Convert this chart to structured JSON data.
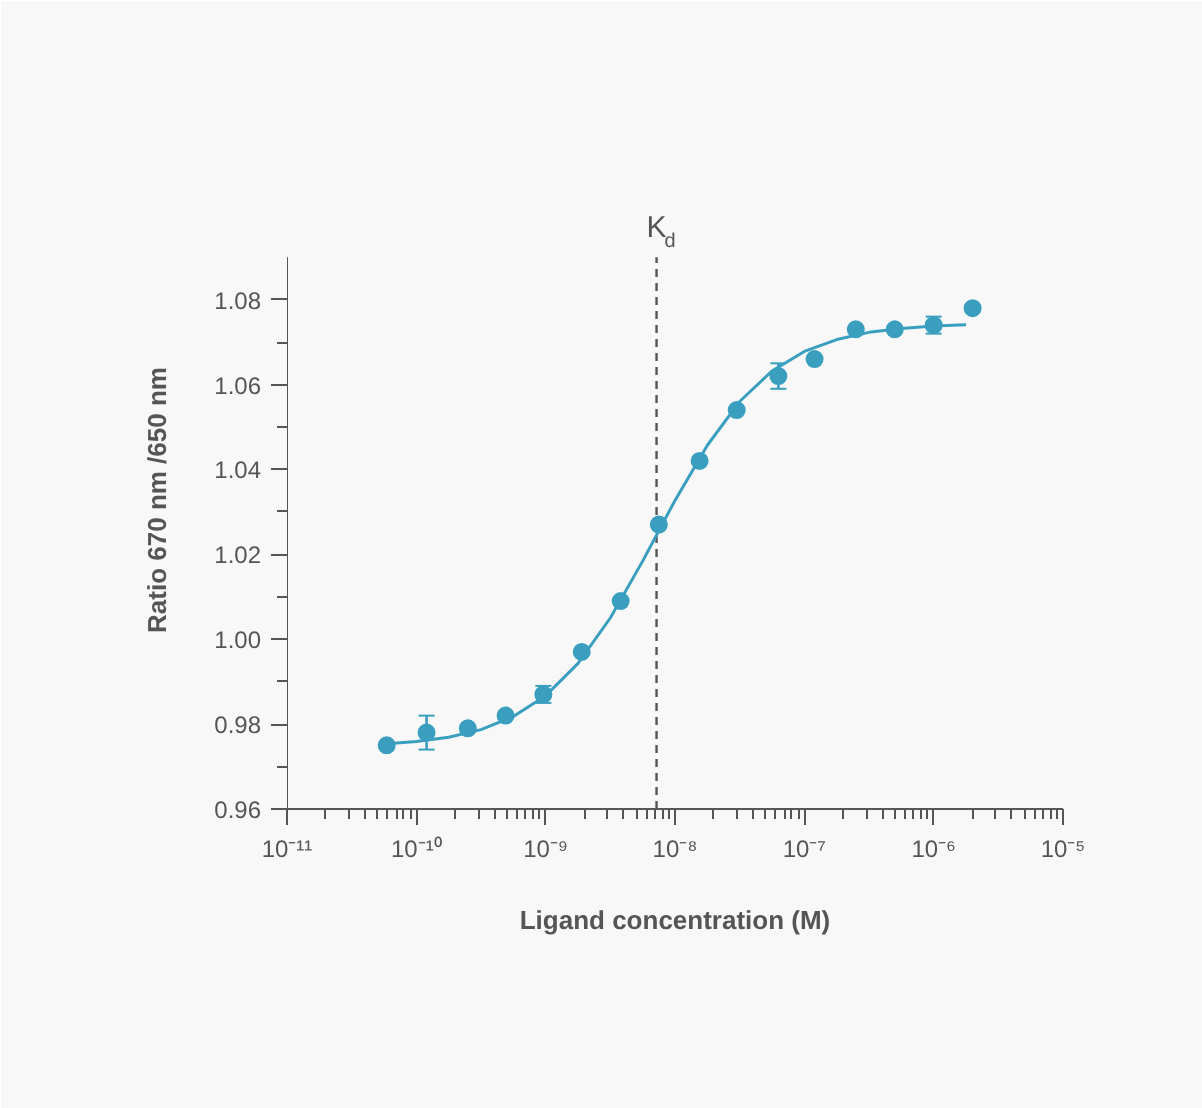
{
  "chart_data": {
    "type": "scatter",
    "xlabel": "Ligand concentration (M)",
    "ylabel": "Ratio 670 nm /650 nm",
    "log": "x",
    "grid": false,
    "xlim": [
      1e-11,
      1e-05
    ],
    "ylim": [
      0.96,
      1.09
    ],
    "xticks": [
      {
        "value": 1e-11,
        "label": "10⁻¹¹"
      },
      {
        "value": 1e-10,
        "label": "10⁻¹⁰"
      },
      {
        "value": 1e-09,
        "label": "10⁻⁹"
      },
      {
        "value": 1e-08,
        "label": "10⁻⁸"
      },
      {
        "value": 1e-07,
        "label": "10⁻⁷"
      },
      {
        "value": 1e-06,
        "label": "10⁻⁶"
      },
      {
        "value": 1e-05,
        "label": "10⁻⁵"
      }
    ],
    "yticks": [
      0.96,
      0.98,
      {
        "value": 1,
        "label": "1.00"
      },
      1.02,
      1.04,
      1.06,
      1.08
    ],
    "ref_lines": [
      {
        "axis": "x",
        "value": 7.2e-09,
        "label": "K$_{d}$",
        "color": "#555555",
        "line_style": "dashed"
      }
    ],
    "series": [
      {
        "color": "#3a9fbf",
        "marker": "circle",
        "x": [
          5.9e-11,
          1.2e-10,
          2.5e-10,
          4.9e-10,
          9.6e-10,
          1.9e-09,
          3.8e-09,
          7.5e-09,
          1.55e-08,
          3e-08,
          6.3e-08,
          1.2e-07,
          2.5e-07,
          5e-07,
          1e-06,
          2e-06
        ],
        "values": [
          0.975,
          0.978,
          0.979,
          0.982,
          0.987,
          0.997,
          1.009,
          1.027,
          1.042,
          1.054,
          1.062,
          1.066,
          1.073,
          1.073,
          1.074,
          1.078
        ],
        "errors": [
          null,
          0.004,
          null,
          null,
          0.002,
          null,
          null,
          null,
          null,
          null,
          0.003,
          null,
          null,
          null,
          0.002,
          null
        ]
      },
      {
        "type": "line",
        "color": "#3a9fbf",
        "x": [
          5.62e-11,
          1e-10,
          1.78e-10,
          3.16e-10,
          5.62e-10,
          1e-09,
          1.78e-09,
          3.16e-09,
          5.62e-09,
          1e-08,
          1.78e-08,
          3.16e-08,
          5.62e-08,
          1e-07,
          1.78e-07,
          3.16e-07,
          5.62e-07,
          1e-06,
          1.78e-06
        ],
        "values": [
          0.9753,
          0.9759,
          0.9769,
          0.9787,
          0.9818,
          0.9867,
          0.9943,
          1.005,
          1.0184,
          1.0327,
          1.0457,
          1.056,
          1.0632,
          1.0678,
          1.0706,
          1.0723,
          1.0732,
          1.0738,
          1.0741
        ]
      }
    ]
  }
}
